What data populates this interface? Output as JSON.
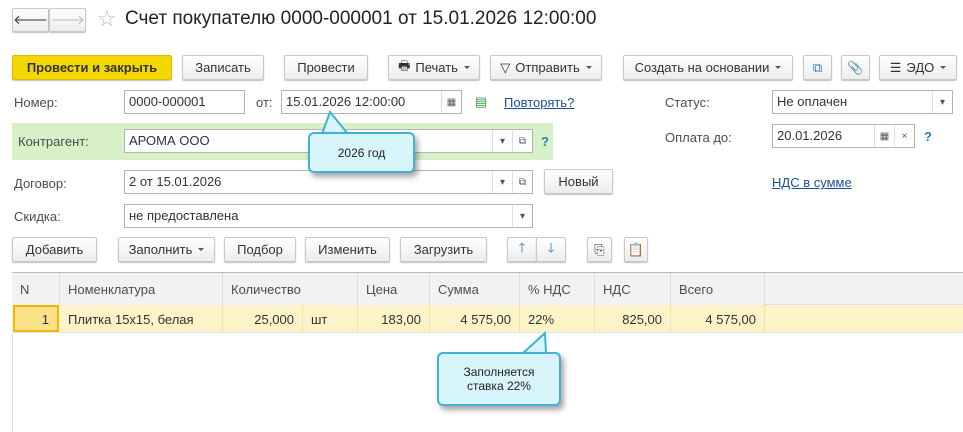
{
  "header": {
    "title": "Счет покупателю 0000-000001 от 15.01.2026 12:00:00"
  },
  "toolbar": {
    "post_close": "Провести и закрыть",
    "save": "Записать",
    "post": "Провести",
    "print": "Печать",
    "send": "Отправить",
    "create_based": "Создать на основании",
    "edo": "ЭДО"
  },
  "form": {
    "number_label": "Номер:",
    "number": "0000-000001",
    "date_label": "от:",
    "date": "15.01.2026 12:00:00",
    "repeat_link": "Повторять?",
    "status_label": "Статус:",
    "status": "Не оплачен",
    "counterparty_label": "Контрагент:",
    "counterparty": "АРОМА ООО",
    "pay_until_label": "Оплата до:",
    "pay_until": "20.01.2026",
    "contract_label": "Договор:",
    "contract": "2 от 15.01.2026",
    "new_button": "Новый",
    "vat_link": "НДС в сумме",
    "discount_label": "Скидка:",
    "discount": "не предоставлена",
    "help": "?"
  },
  "table_toolbar": {
    "add": "Добавить",
    "fill": "Заполнить",
    "pick": "Подбор",
    "edit": "Изменить",
    "load": "Загрузить"
  },
  "table": {
    "columns": [
      "N",
      "Номенклатура",
      "Количество",
      "Цена",
      "Сумма",
      "% НДС",
      "НДС",
      "Всего"
    ],
    "rows": [
      {
        "n": "1",
        "item": "Плитка 15x15, белая",
        "qty": "25,000",
        "unit": "шт",
        "price": "183,00",
        "sum": "4 575,00",
        "vat_rate": "22%",
        "vat": "825,00",
        "total": "4 575,00"
      }
    ]
  },
  "callouts": {
    "year": "2026 год",
    "rate_line1": "Заполняется",
    "rate_line2": "ставка 22%"
  },
  "colors": {
    "primary_button": "#f5d700",
    "counterparty_highlight": "#d8f0c8",
    "selected_row": "#fdf3c8",
    "callout": "#d9f5fc"
  }
}
